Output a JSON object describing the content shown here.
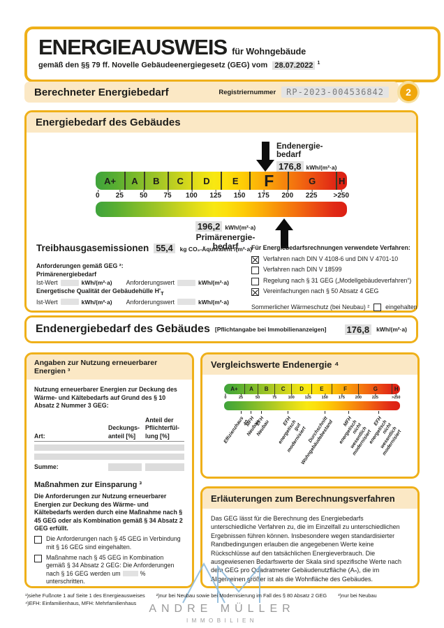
{
  "header": {
    "title": "ENERGIEAUSWEIS",
    "title_for": "für Wohngebäude",
    "subtitle": "gemäß den §§ 79 ff. Novelle Gebäudeenergiegesetz (GEG) vom",
    "date": "28.07.2022",
    "date_sup": "1",
    "page_number": "2"
  },
  "section_bar": {
    "title": "Berechneter Energiebedarf",
    "reg_label": "Registriernummer",
    "reg_value": "RP-2023-004536842"
  },
  "energy_box": {
    "title": "Energiebedarf des Gebäudes",
    "end_label": "Endenergie-\nbedarf",
    "end_value": "176,8",
    "end_unit": "kWh/(m²·a)",
    "primary_value": "196,2",
    "primary_unit": "kWh/(m²·a)",
    "primary_label": "Primärenergie-\nbedarf",
    "emissions_label": "Treibhausgasemissionen",
    "emissions_value": "55,4",
    "emissions_unit": "kg CO₂-Äquivalent /(m²·a)",
    "requirements": {
      "heading": "Anforderungen gemäß GEG ²:",
      "row1_title": "Primärenergiebedarf",
      "row2_title": "Energetische Qualität der Gebäudehülle H'",
      "row2_sub": "T",
      "ist_label": "Ist-Wert",
      "anf_label": "Anforderungswert",
      "unit": "kWh/(m²·a)"
    },
    "methods": {
      "heading": "Für Energiebedarfsrechnungen verwendete Verfahren:",
      "items": [
        {
          "label": "Verfahren nach DIN V 4108-6 und DIN V 4701-10",
          "checked": true
        },
        {
          "label": "Verfahren nach DIN V 18599",
          "checked": false
        },
        {
          "label": "Regelung nach § 31 GEG („Modellgebäudeverfahren“)",
          "checked": false
        },
        {
          "label": "Vereinfachungen nach § 50 Absatz 4 GEG",
          "checked": true
        }
      ],
      "summer_label": "Sommerlicher Wärmeschutz (bei Neubau) ²",
      "summer_checked": false,
      "summer_suffix": "eingehalten"
    }
  },
  "end_energy_bar": {
    "title": "Endenergiebedarf des Gebäudes",
    "note": "[Pflichtangabe bei Immobilienanzeigen]",
    "value": "176,8",
    "unit": "kWh/(m²·a)"
  },
  "renewables": {
    "title": "Angaben zur Nutzung erneuerbarer Energien ³",
    "intro": "Nutzung erneuerbarer Energien zur Deckung des Wärme- und Kältebedarfs auf Grund des § 10 Absatz 2 Nummer 3 GEG:",
    "table": {
      "art": "Art:",
      "col2": "Deckungs-\nanteil [%]",
      "col3": "Anteil der\nPflichterfül-\nlung [%]",
      "sum": "Summe:"
    },
    "savings_heading": "Maßnahmen zur Einsparung ³",
    "savings_intro": "Die Anforderungen zur Nutzung erneuerbarer Energien zur Deckung des Wärme- und Kältebedarfs werden durch eine Maßnahme nach § 45 GEG oder als Kombination gemäß § 34 Absatz 2 GEG erfüllt.",
    "check1": "Die Anforderungen nach § 45 GEG in Verbindung mit § 16 GEG sind eingehalten.",
    "check2_before": "Maßnahme nach § 45 GEG in Kombination gemäß § 34 Absatz 2 GEG: Die Anforderungen nach § 16 GEG werden um",
    "check2_pct": "%",
    "check2_after": "unterschritten.",
    "check2_line2": "Anteil der Pflichterfüllung:",
    "check2_line2_pct": "%"
  },
  "comparison": {
    "title": "Vergleichswerte Endenergie ⁴"
  },
  "explanation": {
    "title": "Erläuterungen zum Berechnungsverfahren",
    "body": "Das GEG lässt für die Berechnung des Energiebedarfs unterschiedliche Verfahren zu, die im Einzelfall zu unterschiedlichen Ergebnissen führen können. Insbesondere wegen standardisierter Randbedingungen erlauben die angegebenen Werte keine Rückschlüsse auf den tatsächlichen Energieverbrauch. Die ausgewiesenen Bedarfswerte der Skala sind spezifische Werte nach dem GEG pro Quadratmeter Gebäudenutzfläche (Aₙ), die im Allgemeinen größer ist als die Wohnfläche des Gebäudes."
  },
  "footnotes": {
    "f1": "¹)siehe Fußnote 1 auf Seite 1 des Energieausweises",
    "f2": "²)nur bei Neubau sowie bei Modernisierung im Fall des § 80 Absatz 2 GEG",
    "f3": "³)nur bei Neubau",
    "f4": "⁴)EFH: Einfamilienhaus, MFH: Mehrfamilienhaus"
  },
  "logo": {
    "monogram": "AM",
    "name": "ANDRE MÜLLER",
    "tagline": "IMMOBILIEN"
  },
  "chart_data": [
    {
      "type": "scale",
      "title": "Energiebedarf des Gebäudes",
      "axis_max": 262,
      "unit": "kWh/(m²·a)",
      "classes": [
        {
          "label": "A+",
          "min": 0,
          "max": 30
        },
        {
          "label": "A",
          "min": 30,
          "max": 50
        },
        {
          "label": "B",
          "min": 50,
          "max": 75
        },
        {
          "label": "C",
          "min": 75,
          "max": 100
        },
        {
          "label": "D",
          "min": 100,
          "max": 130
        },
        {
          "label": "E",
          "min": 130,
          "max": 160
        },
        {
          "label": "F",
          "min": 160,
          "max": 200
        },
        {
          "label": "G",
          "min": 200,
          "max": 250
        },
        {
          "label": "H",
          "min": 250,
          "max": 262
        }
      ],
      "ticks": [
        "0",
        "25",
        "50",
        "75",
        "100",
        "125",
        "150",
        "175",
        "200",
        "225",
        ">250"
      ],
      "tick_values": [
        2,
        25,
        50,
        75,
        100,
        125,
        150,
        175,
        200,
        225,
        256
      ],
      "highlight_class": "F",
      "markers": [
        {
          "name": "Endenergiebedarf",
          "value": 176.8,
          "display": "176,8",
          "arrow": "down"
        },
        {
          "name": "Primärenergiebedarf",
          "value": 196.2,
          "display": "196,2",
          "arrow": "up"
        }
      ],
      "gradient_colors": [
        "#3FA33C",
        "#F8E812",
        "#DB2013"
      ]
    },
    {
      "type": "scale",
      "title": "Vergleichswerte Endenergie",
      "axis_max": 262,
      "classes": [
        {
          "label": "A+",
          "min": 0,
          "max": 30
        },
        {
          "label": "A",
          "min": 30,
          "max": 50
        },
        {
          "label": "B",
          "min": 50,
          "max": 75
        },
        {
          "label": "C",
          "min": 75,
          "max": 100
        },
        {
          "label": "D",
          "min": 100,
          "max": 130
        },
        {
          "label": "E",
          "min": 130,
          "max": 160
        },
        {
          "label": "F",
          "min": 160,
          "max": 200
        },
        {
          "label": "G",
          "min": 200,
          "max": 250
        },
        {
          "label": "H",
          "min": 250,
          "max": 262
        }
      ],
      "ticks": [
        "0",
        "25",
        "50",
        "75",
        "100",
        "125",
        "150",
        "175",
        "200",
        "225",
        ">250"
      ],
      "tick_values": [
        2,
        25,
        50,
        75,
        100,
        125,
        150,
        175,
        200,
        225,
        256
      ],
      "reference_labels": [
        {
          "value": 25,
          "label": "Effizienzhaus 40"
        },
        {
          "value": 40,
          "label": "MFH Neubau"
        },
        {
          "value": 55,
          "label": "EFH Neubau"
        },
        {
          "value": 95,
          "label": "EFH energetisch\ngut modernisiert"
        },
        {
          "value": 150,
          "label": "Durchschnitt\nWohngebäudebestand"
        },
        {
          "value": 185,
          "label": "MFH energetisch nicht\nwesentlich modernisiert"
        },
        {
          "value": 230,
          "label": "EFH energetisch nicht\nwesentlich modernisiert"
        }
      ]
    }
  ]
}
